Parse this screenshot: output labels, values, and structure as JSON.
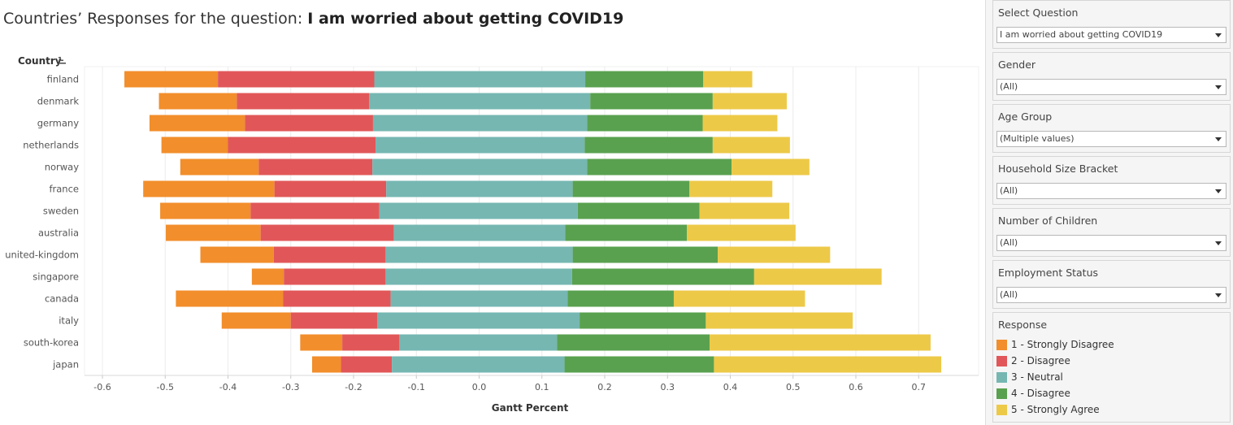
{
  "title": {
    "prefix": "Countries’ Responses for the question: ",
    "question": "I am worried about getting COVID19"
  },
  "sidebar": {
    "filters": [
      {
        "label": "Select Question",
        "value": "I am worried about getting COVID19"
      },
      {
        "label": "Gender",
        "value": "(All)"
      },
      {
        "label": "Age Group",
        "value": "(Multiple values)"
      },
      {
        "label": "Household Size Bracket",
        "value": "(All)"
      },
      {
        "label": "Number of Children",
        "value": "(All)"
      },
      {
        "label": "Employment Status",
        "value": "(All)"
      }
    ],
    "legend": {
      "title": "Response",
      "items": [
        {
          "label": "1 - Strongly Disagree",
          "color": "#F28E2B"
        },
        {
          "label": "2 - Disagree",
          "color": "#E15759"
        },
        {
          "label": "3 - Neutral",
          "color": "#76B7B2"
        },
        {
          "label": "4 - Disagree",
          "color": "#59A14F"
        },
        {
          "label": "5 - Strongly Agree",
          "color": "#EDC948"
        }
      ]
    }
  },
  "chart_data": {
    "type": "bar",
    "orientation": "horizontal-stacked-diverging",
    "ylabel": "Country",
    "xlabel": "Gantt Percent",
    "xlim": [
      -0.63,
      0.8
    ],
    "xticks": [
      -0.6,
      -0.5,
      -0.4,
      -0.3,
      -0.2,
      -0.1,
      0.0,
      0.1,
      0.2,
      0.3,
      0.4,
      0.5,
      0.6,
      0.7
    ],
    "xtick_labels": [
      "-0.6",
      "-0.5",
      "-0.4",
      "-0.3",
      "-0.2",
      "-0.1",
      "0.0",
      "0.1",
      "0.2",
      "0.3",
      "0.4",
      "0.5",
      "0.6",
      "0.7"
    ],
    "grid": true,
    "series_names": [
      "1 - Strongly Disagree",
      "2 - Disagree",
      "3 - Neutral",
      "4 - Disagree",
      "5 - Strongly Agree"
    ],
    "colors": [
      "#F28E2B",
      "#E15759",
      "#76B7B2",
      "#59A14F",
      "#EDC948"
    ],
    "countries": [
      {
        "name": "finland",
        "b": [
          -0.565,
          -0.416,
          -0.167,
          0.169,
          0.357,
          0.435
        ]
      },
      {
        "name": "denmark",
        "b": [
          -0.51,
          -0.386,
          -0.175,
          0.177,
          0.372,
          0.49
        ]
      },
      {
        "name": "germany",
        "b": [
          -0.525,
          -0.373,
          -0.169,
          0.172,
          0.356,
          0.475
        ]
      },
      {
        "name": "netherlands",
        "b": [
          -0.506,
          -0.4,
          -0.165,
          0.168,
          0.372,
          0.495
        ]
      },
      {
        "name": "norway",
        "b": [
          -0.476,
          -0.351,
          -0.17,
          0.172,
          0.402,
          0.526
        ]
      },
      {
        "name": "france",
        "b": [
          -0.535,
          -0.326,
          -0.148,
          0.149,
          0.335,
          0.467
        ]
      },
      {
        "name": "sweden",
        "b": [
          -0.508,
          -0.364,
          -0.159,
          0.157,
          0.351,
          0.494
        ]
      },
      {
        "name": "australia",
        "b": [
          -0.499,
          -0.348,
          -0.136,
          0.137,
          0.331,
          0.504
        ]
      },
      {
        "name": "united-kingdom",
        "b": [
          -0.444,
          -0.327,
          -0.149,
          0.149,
          0.38,
          0.559
        ]
      },
      {
        "name": "singapore",
        "b": [
          -0.362,
          -0.311,
          -0.149,
          0.148,
          0.438,
          0.641
        ]
      },
      {
        "name": "canada",
        "b": [
          -0.483,
          -0.312,
          -0.141,
          0.141,
          0.31,
          0.519
        ]
      },
      {
        "name": "italy",
        "b": [
          -0.41,
          -0.3,
          -0.162,
          0.16,
          0.361,
          0.595
        ]
      },
      {
        "name": "south-korea",
        "b": [
          -0.285,
          -0.218,
          -0.127,
          0.124,
          0.367,
          0.719
        ]
      },
      {
        "name": "japan",
        "b": [
          -0.266,
          -0.22,
          -0.139,
          0.136,
          0.374,
          0.736
        ]
      }
    ]
  }
}
